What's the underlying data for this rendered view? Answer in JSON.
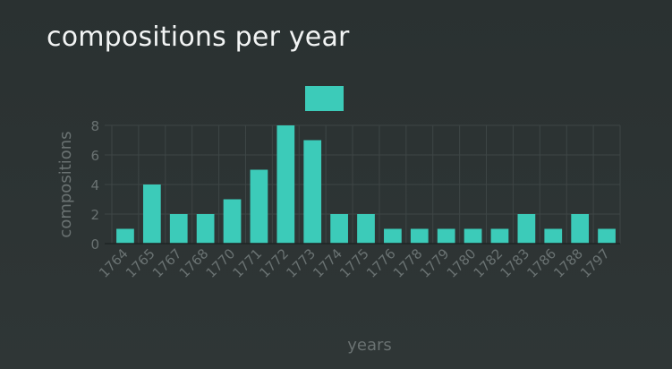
{
  "page": {
    "title": "compositions per year"
  },
  "colors": {
    "background": "#2c3333",
    "bar": "#3ccbb9",
    "grid": "#3e4646",
    "axis_text": "#6a7272",
    "title_text": "#f2f4f4"
  },
  "chart_data": {
    "type": "bar",
    "title": "compositions per year",
    "xlabel": "years",
    "ylabel": "compositions",
    "categories": [
      "1764",
      "1765",
      "1767",
      "1768",
      "1770",
      "1771",
      "1772",
      "1773",
      "1774",
      "1775",
      "1776",
      "1778",
      "1779",
      "1780",
      "1782",
      "1783",
      "1786",
      "1788",
      "1797"
    ],
    "values": [
      1,
      4,
      2,
      2,
      3,
      5,
      8,
      7,
      2,
      2,
      1,
      1,
      1,
      1,
      1,
      2,
      1,
      2,
      1
    ],
    "ylim": [
      0,
      8
    ],
    "yticks": [
      0,
      2,
      4,
      6,
      8
    ],
    "grid": true,
    "legend": {
      "placement": "top-center",
      "entries": [
        {
          "name": "",
          "color": "#3ccbb9"
        }
      ]
    }
  }
}
